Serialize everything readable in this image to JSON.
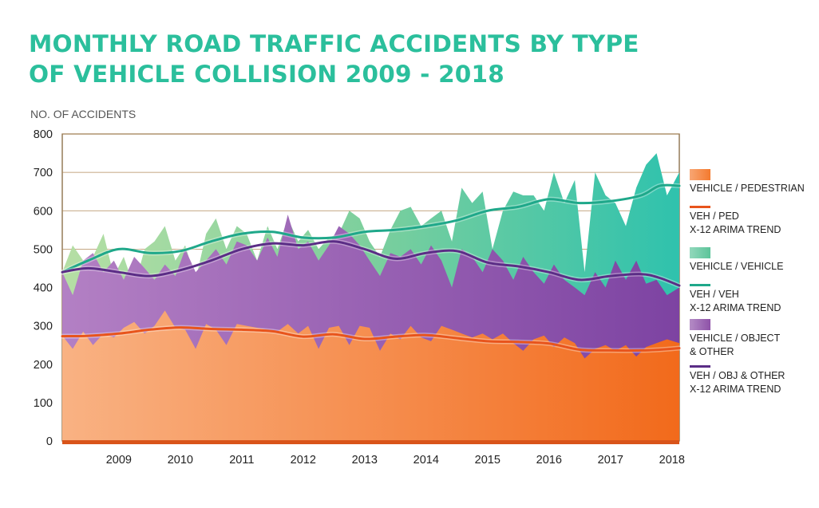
{
  "title": "MONTHLY ROAD TRAFFIC ACCIDENTS BY TYPE OF VEHICLE COLLISION 2009 - 2018",
  "chart_data": {
    "type": "area",
    "ylabel": "NO. OF ACCIDENTS",
    "ylim": [
      0,
      800
    ],
    "yticks": [
      0,
      100,
      200,
      300,
      400,
      500,
      600,
      700,
      800
    ],
    "xlim": [
      2008.58,
      2018.62
    ],
    "years": [
      "2009",
      "2010",
      "2011",
      "2012",
      "2013",
      "2014",
      "2015",
      "2016",
      "2017",
      "2018"
    ],
    "grid": true,
    "series": [
      {
        "name": "VEHICLE / PEDESTRIAN",
        "kind": "area",
        "color": "#f47a2e",
        "x": [
          2008.58,
          2008.75,
          2008.92,
          2009.08,
          2009.25,
          2009.42,
          2009.58,
          2009.75,
          2009.92,
          2010.08,
          2010.25,
          2010.42,
          2010.58,
          2010.75,
          2010.92,
          2011.08,
          2011.25,
          2011.42,
          2011.58,
          2011.75,
          2011.92,
          2012.08,
          2012.25,
          2012.42,
          2012.58,
          2012.75,
          2012.92,
          2013.08,
          2013.25,
          2013.42,
          2013.58,
          2013.75,
          2013.92,
          2014.08,
          2014.25,
          2014.42,
          2014.58,
          2014.75,
          2014.92,
          2015.08,
          2015.25,
          2015.42,
          2015.58,
          2015.75,
          2015.92,
          2016.08,
          2016.25,
          2016.42,
          2016.58,
          2016.75,
          2016.92,
          2017.08,
          2017.25,
          2017.42,
          2017.58,
          2017.75,
          2017.92,
          2018.08,
          2018.25,
          2018.42,
          2018.62
        ],
        "values": [
          275,
          240,
          285,
          250,
          280,
          270,
          295,
          310,
          280,
          300,
          340,
          295,
          290,
          240,
          305,
          290,
          250,
          305,
          300,
          295,
          290,
          285,
          305,
          280,
          300,
          240,
          295,
          300,
          250,
          300,
          295,
          235,
          280,
          265,
          300,
          270,
          260,
          300,
          290,
          280,
          270,
          280,
          265,
          280,
          255,
          235,
          265,
          275,
          245,
          270,
          255,
          215,
          240,
          250,
          235,
          250,
          220,
          245,
          255,
          265,
          255
        ]
      },
      {
        "name": "VEH / PED X-12 ARIMA TREND",
        "kind": "line",
        "color": "#e8541c",
        "x": [
          2008.58,
          2009.0,
          2009.5,
          2010.0,
          2010.5,
          2011.0,
          2011.5,
          2012.0,
          2012.5,
          2013.0,
          2013.5,
          2014.0,
          2014.5,
          2015.0,
          2015.5,
          2016.0,
          2016.5,
          2017.0,
          2017.5,
          2018.0,
          2018.3,
          2018.62
        ],
        "values": [
          273,
          274,
          280,
          290,
          296,
          292,
          290,
          286,
          272,
          278,
          266,
          272,
          276,
          268,
          260,
          258,
          254,
          238,
          236,
          236,
          238,
          242
        ]
      },
      {
        "name": "VEHICLE / VEHICLE",
        "kind": "area",
        "color": "#5cc49a",
        "x": [
          2008.58,
          2008.75,
          2008.92,
          2009.08,
          2009.25,
          2009.42,
          2009.58,
          2009.75,
          2009.92,
          2010.08,
          2010.25,
          2010.42,
          2010.58,
          2010.75,
          2010.92,
          2011.08,
          2011.25,
          2011.42,
          2011.58,
          2011.75,
          2011.92,
          2012.08,
          2012.25,
          2012.42,
          2012.58,
          2012.75,
          2012.92,
          2013.08,
          2013.25,
          2013.42,
          2013.58,
          2013.75,
          2013.92,
          2014.08,
          2014.25,
          2014.42,
          2014.58,
          2014.75,
          2014.92,
          2015.08,
          2015.25,
          2015.42,
          2015.58,
          2015.75,
          2015.92,
          2016.08,
          2016.25,
          2016.42,
          2016.58,
          2016.75,
          2016.92,
          2017.08,
          2017.25,
          2017.42,
          2017.58,
          2017.75,
          2017.92,
          2018.08,
          2018.25,
          2018.42,
          2018.62
        ],
        "values": [
          440,
          510,
          470,
          480,
          540,
          430,
          480,
          400,
          500,
          520,
          560,
          470,
          510,
          420,
          540,
          580,
          500,
          560,
          540,
          470,
          560,
          500,
          580,
          520,
          550,
          500,
          530,
          540,
          600,
          580,
          520,
          480,
          550,
          600,
          610,
          560,
          580,
          600,
          520,
          660,
          620,
          650,
          500,
          600,
          650,
          640,
          640,
          600,
          700,
          620,
          680,
          440,
          700,
          640,
          620,
          560,
          660,
          720,
          750,
          640,
          700
        ]
      },
      {
        "name": "VEH / VEH X-12 ARIMA TREND",
        "kind": "line",
        "color": "#1fa88a",
        "x": [
          2008.58,
          2009.0,
          2009.5,
          2010.0,
          2010.5,
          2011.0,
          2011.5,
          2012.0,
          2012.5,
          2013.0,
          2013.5,
          2014.0,
          2014.5,
          2015.0,
          2015.5,
          2016.0,
          2016.5,
          2017.0,
          2017.5,
          2018.0,
          2018.3,
          2018.62
        ],
        "values": [
          440,
          470,
          500,
          490,
          495,
          520,
          540,
          545,
          530,
          530,
          545,
          550,
          560,
          575,
          600,
          610,
          630,
          620,
          625,
          640,
          665,
          665
        ]
      },
      {
        "name": "VEHICLE / OBJECT & OTHER",
        "kind": "area",
        "color": "#8e52a8",
        "x": [
          2008.58,
          2008.75,
          2008.92,
          2009.08,
          2009.25,
          2009.42,
          2009.58,
          2009.75,
          2009.92,
          2010.08,
          2010.25,
          2010.42,
          2010.58,
          2010.75,
          2010.92,
          2011.08,
          2011.25,
          2011.42,
          2011.58,
          2011.75,
          2011.92,
          2012.08,
          2012.25,
          2012.42,
          2012.58,
          2012.75,
          2012.92,
          2013.08,
          2013.25,
          2013.42,
          2013.58,
          2013.75,
          2013.92,
          2014.08,
          2014.25,
          2014.42,
          2014.58,
          2014.75,
          2014.92,
          2015.08,
          2015.25,
          2015.42,
          2015.58,
          2015.75,
          2015.92,
          2016.08,
          2016.25,
          2016.42,
          2016.58,
          2016.75,
          2016.92,
          2017.08,
          2017.25,
          2017.42,
          2017.58,
          2017.75,
          2017.92,
          2018.08,
          2018.25,
          2018.42,
          2018.62
        ],
        "values": [
          440,
          380,
          470,
          490,
          440,
          470,
          420,
          480,
          450,
          420,
          460,
          430,
          500,
          440,
          470,
          500,
          460,
          520,
          510,
          470,
          530,
          480,
          590,
          500,
          520,
          470,
          510,
          560,
          540,
          510,
          470,
          430,
          490,
          480,
          500,
          460,
          510,
          470,
          400,
          500,
          480,
          440,
          500,
          470,
          420,
          480,
          440,
          410,
          460,
          420,
          400,
          380,
          440,
          400,
          470,
          420,
          470,
          410,
          420,
          380,
          400
        ]
      },
      {
        "name": "VEH / OBJ & OTHER X-12 ARIMA TREND",
        "kind": "line",
        "color": "#5b2d86",
        "x": [
          2008.58,
          2009.0,
          2009.5,
          2010.0,
          2010.5,
          2011.0,
          2011.5,
          2012.0,
          2012.5,
          2013.0,
          2013.5,
          2014.0,
          2014.5,
          2015.0,
          2015.5,
          2016.0,
          2016.5,
          2017.0,
          2017.5,
          2018.0,
          2018.3,
          2018.62
        ],
        "values": [
          440,
          450,
          440,
          430,
          445,
          470,
          500,
          515,
          510,
          520,
          500,
          475,
          490,
          495,
          465,
          455,
          440,
          420,
          430,
          435,
          425,
          405
        ]
      }
    ]
  },
  "legend": [
    {
      "label": "VEHICLE / PEDESTRIAN",
      "kind": "area",
      "color": "#f47a2e"
    },
    {
      "label": "VEH / PED\nX-12 ARIMA TREND",
      "kind": "line",
      "color": "#e8541c"
    },
    {
      "label": "VEHICLE / VEHICLE",
      "kind": "area",
      "color": "#5cc49a"
    },
    {
      "label": "VEH / VEH\nX-12 ARIMA TREND",
      "kind": "line",
      "color": "#1fa88a"
    },
    {
      "label": "VEHICLE / OBJECT\n& OTHER",
      "kind": "area",
      "color": "#8e52a8"
    },
    {
      "label": "VEH / OBJ  & OTHER\nX-12 ARIMA TREND",
      "kind": "line",
      "color": "#5b2d86"
    }
  ]
}
